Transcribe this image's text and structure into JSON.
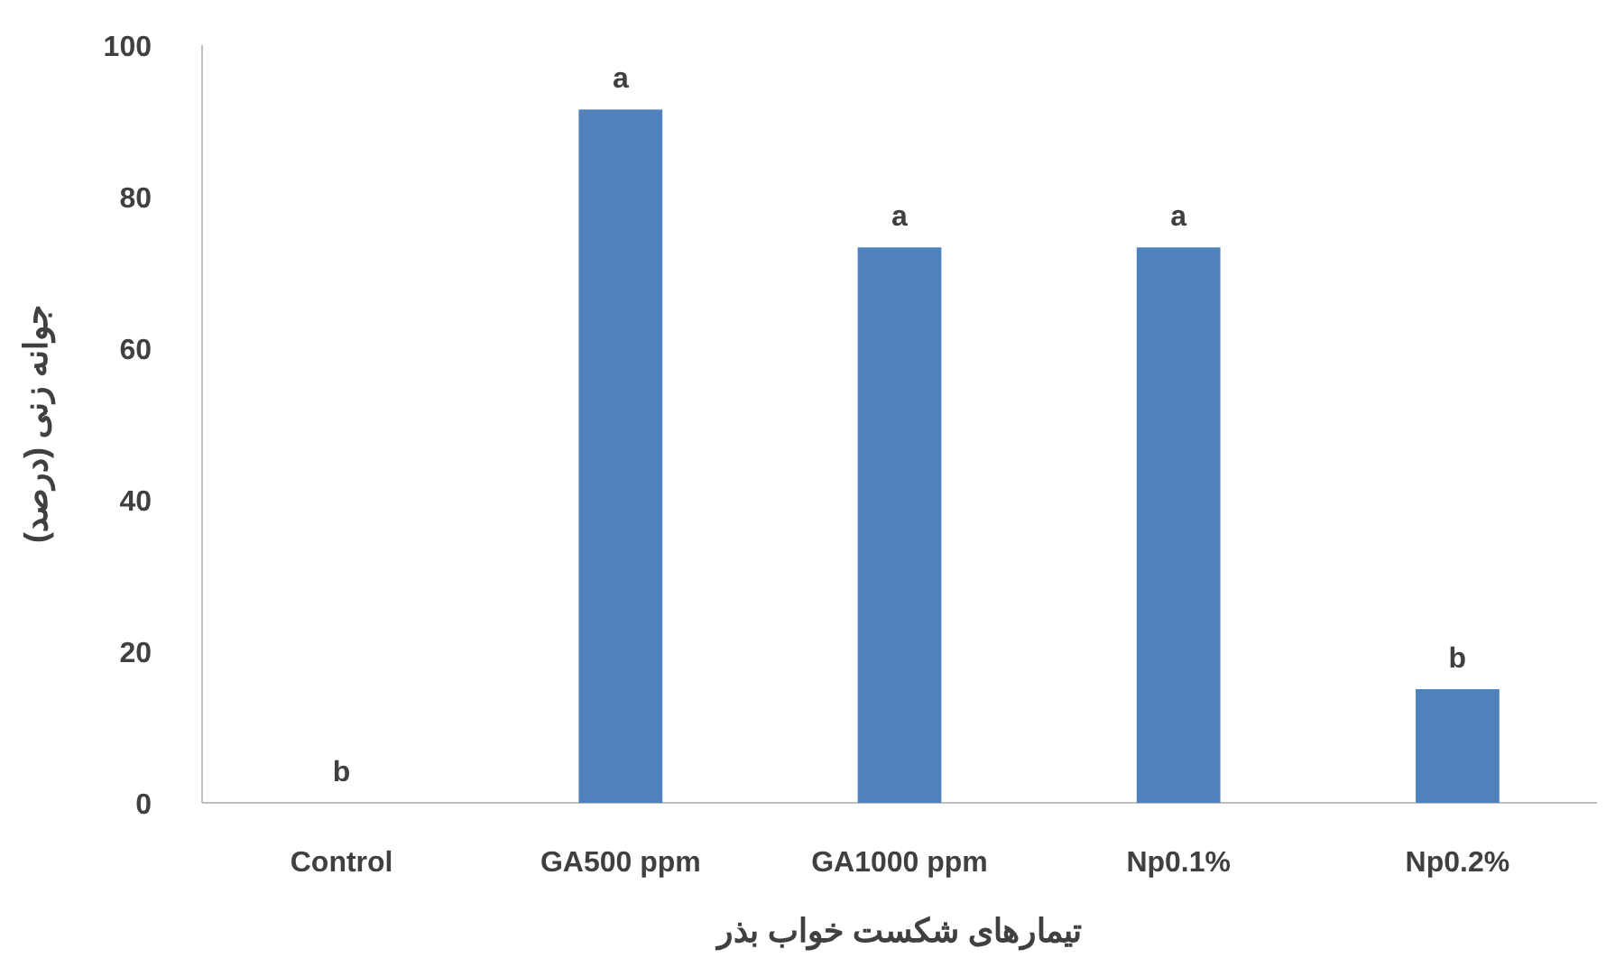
{
  "chart_data": {
    "type": "bar",
    "xlabel": "تیمارهای شکست خواب بذر",
    "ylabel": "جوانه زنی (درصد)",
    "categories": [
      "Control",
      "GA500 ppm",
      "GA1000 ppm",
      "Np0.1%",
      "Np0.2%"
    ],
    "values": [
      0,
      91.5,
      73.3,
      73.3,
      15
    ],
    "color": "#4f81bd",
    "ylim": [
      0,
      100
    ],
    "yticks": [
      0,
      20,
      40,
      60,
      80,
      100
    ],
    "grid": false,
    "annotations": [
      {
        "text": "b",
        "x": "Control",
        "y": 0
      },
      {
        "text": "a",
        "x": "GA500 ppm",
        "y": 91.5
      },
      {
        "text": "a",
        "x": "GA1000 ppm",
        "y": 73.3
      },
      {
        "text": "a",
        "x": "Np0.1%",
        "y": 73.3
      },
      {
        "text": "b",
        "x": "Np0.2%",
        "y": 15
      }
    ]
  }
}
